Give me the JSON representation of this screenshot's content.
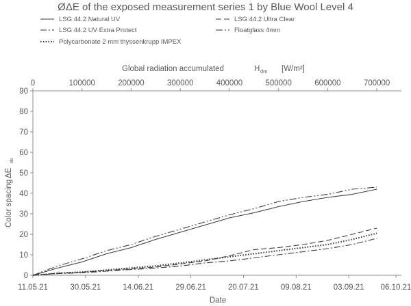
{
  "chart_data": {
    "type": "line",
    "title": "ØΔE of the exposed measurement series 1 by Blue Wool Level 4",
    "xlabel": "Date",
    "ylabel": "Color spacing",
    "ylabel_symbol": "ΔE",
    "ylabel_symbol_sub": "ab",
    "x2label": "Global radiation accumulated",
    "x2label_symbol": "H",
    "x2label_symbol_sub": "dm",
    "x2label_unit": "[W/m²]",
    "x_ticks": [
      "11.05.21",
      "30.05.21",
      "14.06.21",
      "29.06.21",
      "20.07.21",
      "09.08.21",
      "03.09.21",
      "06.10.21"
    ],
    "x2_ticks": [
      "0",
      "100000",
      "200000",
      "300000",
      "400000",
      "500000",
      "600000",
      "700000"
    ],
    "x2lim": [
      0,
      750000
    ],
    "ylim": [
      0,
      90
    ],
    "y_ticks": [
      "0",
      "10",
      "20",
      "30",
      "40",
      "50",
      "60",
      "70",
      "80",
      "90"
    ],
    "grid": false,
    "legend_position": "top",
    "series": [
      {
        "name": "LSG 44.2 Natural UV",
        "style": "solid",
        "x": [
          0,
          50000,
          100000,
          150000,
          200000,
          250000,
          300000,
          350000,
          400000,
          450000,
          500000,
          550000,
          600000,
          650000,
          700000
        ],
        "y": [
          0,
          3.5,
          6.5,
          10.5,
          13.5,
          17.5,
          21,
          24.5,
          28,
          30.5,
          33.5,
          36,
          38,
          39.5,
          42
        ]
      },
      {
        "name": "LSG 44.2 Ultra Clear",
        "style": "dashed",
        "x": [
          0,
          50000,
          100000,
          150000,
          200000,
          250000,
          300000,
          350000,
          400000,
          450000,
          500000,
          550000,
          600000,
          650000,
          700000
        ],
        "y": [
          0,
          1,
          1.5,
          2.3,
          3.2,
          4,
          5.5,
          7,
          9.5,
          12.5,
          13.5,
          15,
          17,
          20,
          23
        ]
      },
      {
        "name": "LSG 44.2 UV Extra Protect",
        "style": "dashdot",
        "x": [
          0,
          50000,
          100000,
          150000,
          200000,
          250000,
          300000,
          350000,
          400000,
          450000,
          500000,
          550000,
          600000,
          650000,
          700000
        ],
        "y": [
          0,
          0.8,
          1.2,
          2,
          2.8,
          3.5,
          4.5,
          6,
          7,
          8.5,
          10,
          11.5,
          13,
          15,
          18
        ]
      },
      {
        "name": "Floatglass 4mm",
        "style": "dashdotdot",
        "x": [
          0,
          50000,
          100000,
          150000,
          200000,
          250000,
          300000,
          350000,
          400000,
          450000,
          500000,
          550000,
          600000,
          650000,
          700000
        ],
        "y": [
          0,
          4.5,
          8,
          12,
          15,
          19,
          22.5,
          26,
          29.5,
          32.5,
          36,
          38,
          39.5,
          42,
          43
        ]
      },
      {
        "name": "Polycarbonate 2 mm thyssenkrupp IMPEX",
        "style": "dotted",
        "x": [
          0,
          50000,
          100000,
          150000,
          200000,
          250000,
          300000,
          350000,
          400000,
          450000,
          500000,
          550000,
          600000,
          650000,
          700000
        ],
        "y": [
          0,
          1,
          1.6,
          2.6,
          3.6,
          4.6,
          6,
          7.5,
          9,
          10.5,
          12,
          13.5,
          15,
          17.5,
          20.5
        ]
      }
    ]
  }
}
